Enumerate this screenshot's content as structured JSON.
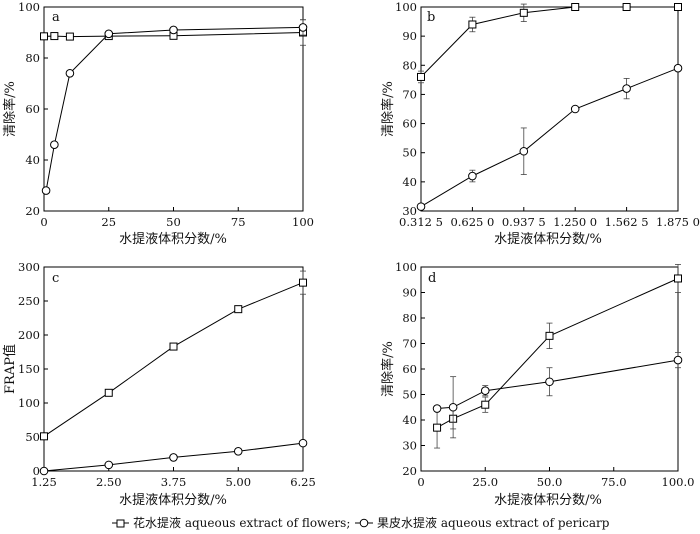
{
  "figure": {
    "legend": [
      {
        "marker": "square",
        "text": "花水提液 aqueous extract of flowers;"
      },
      {
        "marker": "circle",
        "text": "果皮水提液 aqueous extract of pericarp"
      }
    ]
  },
  "chart_data": [
    {
      "panel": "a",
      "type": "line",
      "xlabel": "水提液体积分数/%",
      "ylabel": "清除率/%",
      "xlim": [
        0,
        100
      ],
      "ylim": [
        20,
        100
      ],
      "x_ticks": [
        "0",
        "25",
        "50",
        "75",
        "100"
      ],
      "y_ticks": [
        "20",
        "40",
        "60",
        "80",
        "100"
      ],
      "series": [
        {
          "marker": "square",
          "x": [
            0,
            4,
            10,
            25,
            50,
            100
          ],
          "y": [
            88.5,
            88.6,
            88.4,
            88.6,
            88.7,
            90
          ],
          "err": [
            0,
            0,
            0,
            0,
            0,
            5
          ]
        },
        {
          "marker": "circle",
          "x": [
            0.8,
            4,
            10,
            25,
            50,
            100
          ],
          "y": [
            28,
            46,
            74,
            89.5,
            91,
            92
          ],
          "err": [
            0,
            0,
            0,
            0,
            0,
            3
          ]
        }
      ]
    },
    {
      "panel": "b",
      "type": "line",
      "xlabel": "水提液体积分数/%",
      "ylabel": "清除率/%",
      "xlim": [
        0.3125,
        1.875
      ],
      "ylim": [
        30,
        100
      ],
      "x_ticks": [
        "0.312 5",
        "0.625 0",
        "0.937 5",
        "1.250 0",
        "1.562 5",
        "1.875 0"
      ],
      "y_ticks": [
        "30",
        "40",
        "50",
        "60",
        "70",
        "80",
        "90",
        "100"
      ],
      "series": [
        {
          "marker": "square",
          "x": [
            0.3125,
            0.625,
            0.9375,
            1.25,
            1.5625,
            1.875
          ],
          "y": [
            76,
            94,
            98,
            100,
            100,
            100
          ],
          "err": [
            2,
            2.5,
            3,
            0,
            0,
            0
          ]
        },
        {
          "marker": "circle",
          "x": [
            0.3125,
            0.625,
            0.9375,
            1.25,
            1.5625,
            1.875
          ],
          "y": [
            31.5,
            42,
            50.5,
            65,
            72,
            79
          ],
          "err": [
            0,
            2,
            8,
            0,
            3.5,
            0
          ]
        }
      ]
    },
    {
      "panel": "c",
      "type": "line",
      "xlabel": "水提液体积分数/%",
      "ylabel": "FRAP值",
      "xlim": [
        1.25,
        6.25
      ],
      "ylim": [
        0,
        300
      ],
      "x_ticks": [
        "1.25",
        "2.50",
        "3.75",
        "5.00",
        "6.25"
      ],
      "y_ticks": [
        "0",
        "50",
        "100",
        "150",
        "200",
        "250",
        "300"
      ],
      "series": [
        {
          "marker": "square",
          "x": [
            1.25,
            2.5,
            3.75,
            5,
            6.25
          ],
          "y": [
            51,
            115,
            183,
            238,
            277
          ],
          "err": [
            0,
            0,
            0,
            0,
            17
          ]
        },
        {
          "marker": "circle",
          "x": [
            1.25,
            2.5,
            3.75,
            5,
            6.25
          ],
          "y": [
            0,
            9,
            20,
            29,
            41
          ],
          "err": [
            0,
            0,
            0,
            0,
            0
          ]
        }
      ]
    },
    {
      "panel": "d",
      "type": "line",
      "xlabel": "水提液体积分数/%",
      "ylabel": "清除率/%",
      "xlim": [
        0,
        100
      ],
      "ylim": [
        20,
        100
      ],
      "x_ticks": [
        "0",
        "25.0",
        "50.0",
        "75.0",
        "100.0"
      ],
      "y_ticks": [
        "20",
        "30",
        "40",
        "50",
        "60",
        "70",
        "80",
        "90",
        "100"
      ],
      "series": [
        {
          "marker": "square",
          "x": [
            6.25,
            12.5,
            25,
            50,
            100
          ],
          "y": [
            37,
            40.5,
            46,
            73,
            95.5
          ],
          "err": [
            8,
            4,
            3,
            5,
            5.5
          ]
        },
        {
          "marker": "circle",
          "x": [
            6.25,
            12.5,
            25,
            50,
            100
          ],
          "y": [
            44.5,
            45,
            51.5,
            55,
            63.5
          ],
          "err": [
            0,
            12,
            2,
            5.5,
            3
          ]
        }
      ]
    }
  ]
}
